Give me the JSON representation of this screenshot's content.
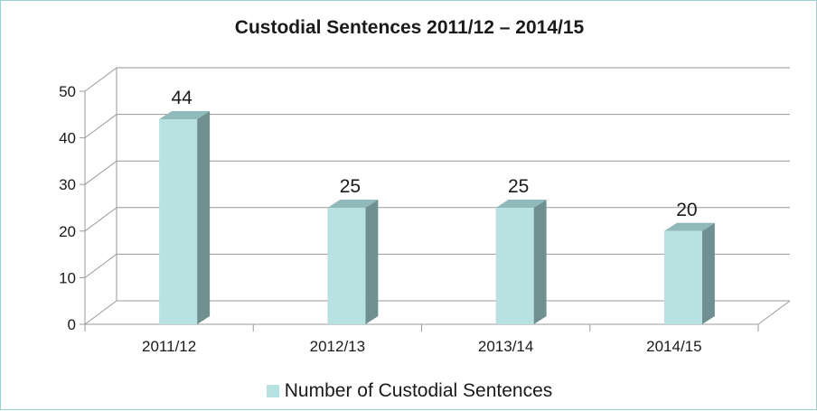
{
  "chart_data": {
    "type": "bar",
    "title": "Custodial Sentences 2011/12 – 2014/15",
    "categories": [
      "2011/12",
      "2012/13",
      "2013/14",
      "2014/15"
    ],
    "series": [
      {
        "name": "Number of Custodial Sentences",
        "values": [
          44,
          25,
          25,
          20
        ]
      }
    ],
    "data_labels": [
      "44",
      "25",
      "25",
      "20"
    ],
    "y_ticks": [
      "0",
      "10",
      "20",
      "30",
      "40",
      "50"
    ],
    "ylim": [
      0,
      50
    ],
    "grid": true,
    "three_d": true,
    "legend_position": "bottom",
    "colors": {
      "bar_front": "#b8e1e2",
      "bar_side": "#6f8f90",
      "bar_top": "#8fb9ba",
      "grid": "#9a9a9a",
      "frame": "#9fd0cf"
    }
  }
}
